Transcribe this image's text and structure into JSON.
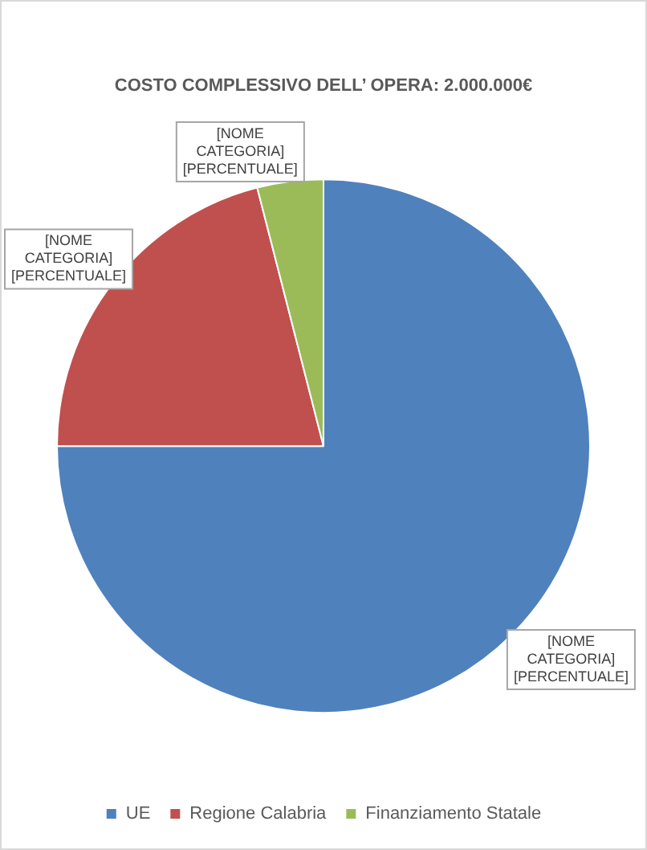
{
  "chart_data": {
    "type": "pie",
    "title": "COSTO COMPLESSIVO DELL’ OPERA: 2.000.000€",
    "categories": [
      "UE",
      "Regione Calabria",
      "Finanziamento Statale"
    ],
    "values": [
      75,
      21,
      4
    ],
    "colors": [
      "#4f81bd",
      "#c0504d",
      "#9bbb59"
    ],
    "value_labels": [
      "[NOME\nCATEGORIA]\n[PERCENTUALE]",
      "[NOME\nCATEGORIA]\n[PERCENTUALE]",
      "[NOME\nCATEGORIA]\n[PERCENTUALE]"
    ],
    "legend": "bottom"
  }
}
